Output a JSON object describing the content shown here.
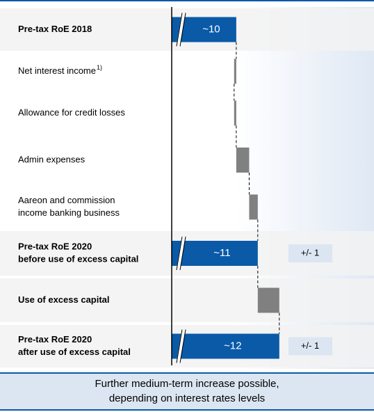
{
  "chart_data": {
    "type": "waterfall",
    "categories": [
      [
        "Pre-tax RoE 2018"
      ],
      [
        "Net interest income"
      ],
      [
        "Allowance for credit losses"
      ],
      [
        "Admin  expenses"
      ],
      [
        "Aareon and commission",
        "income banking business"
      ],
      [
        "Pre-tax RoE 2020",
        "before use of excess capital"
      ],
      [
        "Use of excess capital"
      ],
      [
        "Pre-tax RoE 2020",
        "after use of excess capital"
      ]
    ],
    "category_notes": [
      null,
      "1)",
      null,
      null,
      null,
      null,
      null,
      null
    ],
    "kinds": [
      "total",
      "delta",
      "delta",
      "delta",
      "delta",
      "total",
      "delta",
      "total"
    ],
    "values": [
      10,
      -0.1,
      0.1,
      0.6,
      0.4,
      11,
      1.0,
      12
    ],
    "value_labels": [
      "~10",
      null,
      null,
      null,
      null,
      "~11",
      null,
      "~12"
    ],
    "ranges": [
      null,
      null,
      null,
      null,
      null,
      "+/- 1",
      null,
      "+/- 1"
    ],
    "total_color": "#0a5aa8",
    "delta_color": "#808080",
    "xlim": [
      7,
      16.4
    ],
    "footer": [
      "Further medium-term increase possible,",
      "depending on interest rates levels"
    ]
  }
}
